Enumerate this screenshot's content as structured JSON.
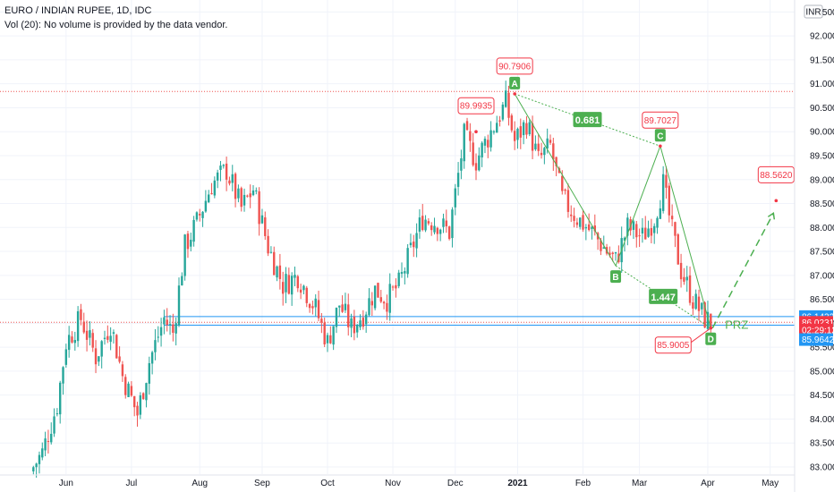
{
  "header": {
    "symbol_line": "EURO / INDIAN RUPEE, 1D, IDC",
    "volume_line": "Vol (20): No volume is provided by the data vendor."
  },
  "currency_badge": "INR",
  "colors": {
    "up": "#26a69a",
    "down": "#ef5350",
    "pattern": "#4caf50",
    "price_tag_red": "#f23645",
    "price_tag_blue": "#2196f3"
  },
  "chart_data": {
    "type": "candlestick",
    "title": "EURO / INDIAN RUPEE, 1D, IDC",
    "ylim": [
      82.85,
      92.75
    ],
    "y_ticks": [
      "83.0000",
      "83.5000",
      "84.0000",
      "84.5000",
      "85.0000",
      "85.5000",
      "86.0000",
      "86.5000",
      "87.0000",
      "87.5000",
      "88.0000",
      "88.5000",
      "89.0000",
      "89.5000",
      "90.0000",
      "90.5000",
      "91.0000",
      "91.5000",
      "92.0000",
      "92.5000"
    ],
    "x_labels": [
      "Jun",
      "Jul",
      "Aug",
      "Sep",
      "Oct",
      "Nov",
      "Dec",
      "2021",
      "Feb",
      "Mar",
      "Apr",
      "May"
    ],
    "price_path": [
      {
        "i": 0,
        "v": 82.9
      },
      {
        "i": 4,
        "v": 83.3
      },
      {
        "i": 9,
        "v": 84.3
      },
      {
        "i": 12,
        "v": 85.6
      },
      {
        "i": 17,
        "v": 86.1
      },
      {
        "i": 22,
        "v": 85.3
      },
      {
        "i": 27,
        "v": 86.0
      },
      {
        "i": 31,
        "v": 84.9
      },
      {
        "i": 36,
        "v": 84.1
      },
      {
        "i": 40,
        "v": 85.2
      },
      {
        "i": 45,
        "v": 86.1
      },
      {
        "i": 48,
        "v": 85.8
      },
      {
        "i": 52,
        "v": 87.6
      },
      {
        "i": 56,
        "v": 88.1
      },
      {
        "i": 61,
        "v": 88.9
      },
      {
        "i": 66,
        "v": 89.2
      },
      {
        "i": 71,
        "v": 88.4
      },
      {
        "i": 75,
        "v": 88.8
      },
      {
        "i": 80,
        "v": 87.6
      },
      {
        "i": 85,
        "v": 86.8
      },
      {
        "i": 90,
        "v": 87.0
      },
      {
        "i": 96,
        "v": 86.3
      },
      {
        "i": 100,
        "v": 85.6
      },
      {
        "i": 104,
        "v": 86.4
      },
      {
        "i": 108,
        "v": 85.9
      },
      {
        "i": 112,
        "v": 86.2
      },
      {
        "i": 116,
        "v": 86.7
      },
      {
        "i": 120,
        "v": 86.5
      },
      {
        "i": 124,
        "v": 86.8
      },
      {
        "i": 128,
        "v": 87.5
      },
      {
        "i": 132,
        "v": 88.2
      },
      {
        "i": 137,
        "v": 88.1
      },
      {
        "i": 141,
        "v": 87.9
      },
      {
        "i": 146,
        "v": 89.9
      },
      {
        "i": 150,
        "v": 89.4
      },
      {
        "i": 155,
        "v": 90.0
      },
      {
        "i": 160,
        "v": 90.6
      },
      {
        "i": 163,
        "v": 89.8
      },
      {
        "i": 167,
        "v": 90.2
      },
      {
        "i": 171,
        "v": 89.4
      },
      {
        "i": 175,
        "v": 89.7
      },
      {
        "i": 179,
        "v": 88.6
      },
      {
        "i": 184,
        "v": 88.2
      },
      {
        "i": 189,
        "v": 87.9
      },
      {
        "i": 194,
        "v": 87.5
      },
      {
        "i": 197,
        "v": 87.3
      },
      {
        "i": 201,
        "v": 88.0
      },
      {
        "i": 206,
        "v": 87.8
      },
      {
        "i": 210,
        "v": 88.2
      },
      {
        "i": 213,
        "v": 88.9
      },
      {
        "i": 216,
        "v": 87.9
      },
      {
        "i": 219,
        "v": 87.1
      },
      {
        "i": 223,
        "v": 86.5
      },
      {
        "i": 227,
        "v": 86.1
      },
      {
        "i": 229,
        "v": 86.02
      }
    ],
    "harmonic_pattern": {
      "points": [
        {
          "label": "A",
          "i": 163,
          "v": 90.79
        },
        {
          "label": "B",
          "i": 197,
          "v": 87.2
        },
        {
          "label": "C",
          "i": 212,
          "v": 89.7
        },
        {
          "label": "D",
          "i": 229,
          "v": 85.9
        }
      ],
      "ratios": [
        {
          "text": "0.681",
          "between": [
            "A",
            "C"
          ]
        },
        {
          "text": "1.447",
          "between": [
            "B",
            "D"
          ]
        }
      ],
      "prz_label": "PRZ"
    },
    "price_callouts": [
      {
        "text": "90.7906",
        "i": 163,
        "v": 90.79
      },
      {
        "text": "89.9935",
        "i": 150,
        "v": 90.0
      },
      {
        "text": "89.7027",
        "i": 212,
        "v": 89.7
      },
      {
        "text": "88.5620",
        "i": 251,
        "v": 88.56
      },
      {
        "text": "85.9005",
        "i": 229,
        "v": 85.9
      }
    ],
    "projection_target": {
      "i": 251,
      "v": 88.56
    },
    "horizontal_levels": [
      90.84,
      86.14,
      85.96
    ],
    "axis_tags": [
      {
        "text": "86.1432",
        "v": 86.14,
        "color": "#2196f3"
      },
      {
        "text": "86.0231",
        "v": 86.02,
        "color": "#f23645"
      },
      {
        "text": "02:29:12",
        "v": 85.86,
        "color": "#f23645"
      },
      {
        "text": "85.9642",
        "v": 85.66,
        "color": "#2196f3"
      }
    ]
  }
}
